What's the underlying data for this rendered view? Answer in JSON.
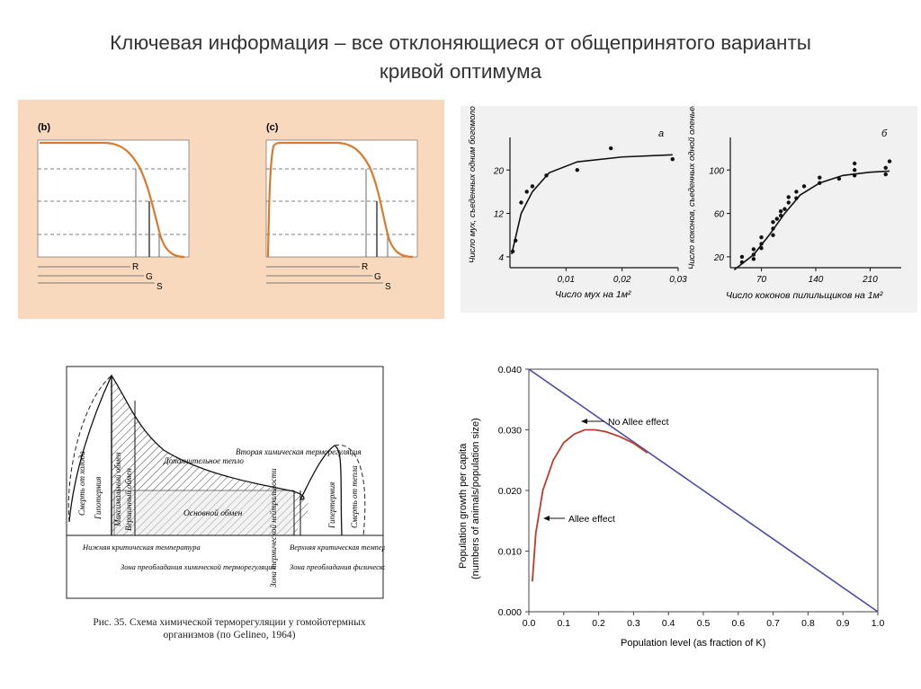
{
  "slide": {
    "title_line1": "Ключевая информация – все отклоняющиеся от общепринятого варианты",
    "title_line2": "кривой оптимума"
  },
  "colors": {
    "tl_background": "#f9d9bd",
    "tl_curve": "#d97a2e",
    "allee_curve": "#c0392b",
    "no_allee_line": "#4a4aa8"
  },
  "tl": {
    "panel_b_label": "(b)",
    "panel_c_label": "(c)",
    "lines": [
      "R",
      "G",
      "S"
    ]
  },
  "tr": {
    "panel_a_label": "а",
    "panel_b_label": "б",
    "chart_a_ylabel": "Число мух, съеденных одним богомолом",
    "chart_a_xlabel": "Число мух на 1м²",
    "chart_a_yticks": [
      "4",
      "12",
      "20"
    ],
    "chart_a_xticks": [
      "0,01",
      "0,02",
      "0,03"
    ],
    "chart_b_ylabel": "Число коконов, съеденных одной оленьей мышью",
    "chart_b_xlabel": "Число коконов пилильщиков на 1м²",
    "chart_b_yticks": [
      "20",
      "60",
      "100"
    ],
    "chart_b_xticks": [
      "70",
      "140",
      "210"
    ]
  },
  "bl": {
    "labels": {
      "death_cold": "Смерть от холода",
      "hypothermia": "Гипотермия",
      "max_metabolism": "Максимальный обмен",
      "summit_metabolism": "Вершинный обмен",
      "additional_heat": "Дополнительное тепло",
      "second_chem": "Вторая химическая терморегуляция",
      "basal_metabolism": "Основной обмен",
      "hyperthermia": "Гипертермия",
      "death_heat": "Смерть от тепла",
      "lower_critical": "Нижняя критическая температура",
      "upper_critical": "Верхняя критическая температура",
      "zone_chem": "Зона преобладания химической терморегуляции",
      "zone_neutral": "Зона термической нейтральности",
      "zone_phys": "Зона преобладания физической терморегуляции"
    },
    "caption": "Рис. 35. Схема химической терморегуляции у гомойотермных организмов (по Gelineo, 1964)"
  },
  "br": {
    "ylabel_line1": "Population growth per capita",
    "ylabel_line2": "(numbers of animals/population size)",
    "xlabel": "Population level (as fraction of K)",
    "annotation_no_allee": "No Allee effect",
    "annotation_allee": "Allee effect"
  },
  "chart_data": [
    {
      "type": "line",
      "ylabel": "Population growth per capita (numbers of animals/population size)",
      "xlabel": "Population level (as fraction of K)",
      "xlim": [
        0,
        1.0
      ],
      "ylim": [
        0,
        0.04
      ],
      "xticks": [
        "0.0",
        "0.1",
        "0.2",
        "0.3",
        "0.4",
        "0.5",
        "0.6",
        "0.7",
        "0.8",
        "0.9",
        "1.0"
      ],
      "yticks": [
        "0.000",
        "0.010",
        "0.020",
        "0.030",
        "0.040"
      ],
      "series": [
        {
          "name": "No Allee effect",
          "x": [
            0.0,
            1.0
          ],
          "y": [
            0.04,
            0.0
          ]
        },
        {
          "name": "Allee effect",
          "x": [
            0.01,
            0.02,
            0.04,
            0.07,
            0.1,
            0.13,
            0.16,
            0.19,
            0.22,
            0.26,
            0.3,
            0.34
          ],
          "y": [
            0.005,
            0.013,
            0.02,
            0.025,
            0.0279,
            0.0293,
            0.03,
            0.03,
            0.0297,
            0.0289,
            0.0278,
            0.0262
          ]
        }
      ]
    },
    {
      "type": "scatter",
      "xticks": [
        "0,01",
        "0,02",
        "0,03"
      ],
      "yticks": [
        "4",
        "12",
        "20"
      ],
      "xlim": [
        0,
        0.03
      ],
      "ylim": [
        2,
        26
      ],
      "points": [
        [
          0.0005,
          5
        ],
        [
          0.001,
          7
        ],
        [
          0.002,
          14
        ],
        [
          0.003,
          16
        ],
        [
          0.004,
          17
        ],
        [
          0.0065,
          19
        ],
        [
          0.012,
          20
        ],
        [
          0.018,
          24
        ],
        [
          0.029,
          22
        ]
      ],
      "curve": [
        [
          0.0003,
          4.5
        ],
        [
          0.002,
          12
        ],
        [
          0.004,
          16
        ],
        [
          0.007,
          19.5
        ],
        [
          0.012,
          21.5
        ],
        [
          0.02,
          22.4
        ],
        [
          0.029,
          22.8
        ]
      ]
    },
    {
      "type": "scatter",
      "xticks": [
        "70",
        "140",
        "210"
      ],
      "yticks": [
        "20",
        "60",
        "100"
      ],
      "xlim": [
        30,
        250
      ],
      "ylim": [
        10,
        130
      ],
      "points": [
        [
          45,
          15
        ],
        [
          45,
          20
        ],
        [
          60,
          18
        ],
        [
          60,
          22
        ],
        [
          60,
          27
        ],
        [
          70,
          28
        ],
        [
          70,
          32
        ],
        [
          70,
          38
        ],
        [
          85,
          40
        ],
        [
          85,
          46
        ],
        [
          85,
          52
        ],
        [
          90,
          55
        ],
        [
          95,
          58
        ],
        [
          95,
          62
        ],
        [
          100,
          64
        ],
        [
          105,
          70
        ],
        [
          105,
          75
        ],
        [
          115,
          74
        ],
        [
          115,
          80
        ],
        [
          125,
          85
        ],
        [
          145,
          88
        ],
        [
          145,
          93
        ],
        [
          170,
          92
        ],
        [
          190,
          95
        ],
        [
          190,
          100
        ],
        [
          190,
          106
        ],
        [
          230,
          96
        ],
        [
          230,
          102
        ],
        [
          235,
          108
        ]
      ],
      "curve": [
        [
          35,
          8
        ],
        [
          60,
          22
        ],
        [
          80,
          40
        ],
        [
          100,
          60
        ],
        [
          120,
          77
        ],
        [
          145,
          88
        ],
        [
          175,
          95
        ],
        [
          210,
          98
        ],
        [
          235,
          99
        ]
      ]
    }
  ]
}
